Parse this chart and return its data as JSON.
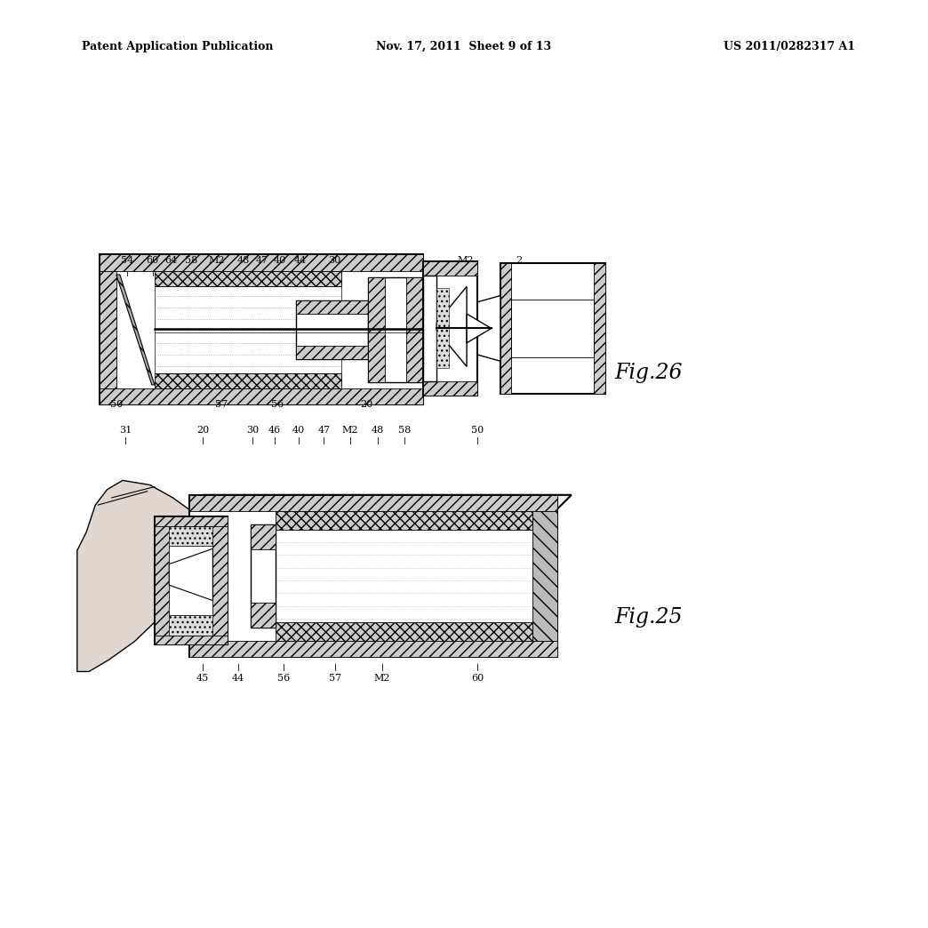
{
  "background_color": "#ffffff",
  "header_left": "Patent Application Publication",
  "header_mid": "Nov. 17, 2011  Sheet 9 of 13",
  "header_right": "US 2011/0282317 A1",
  "fig26_label": "Fig.26",
  "fig25_label": "Fig.25"
}
